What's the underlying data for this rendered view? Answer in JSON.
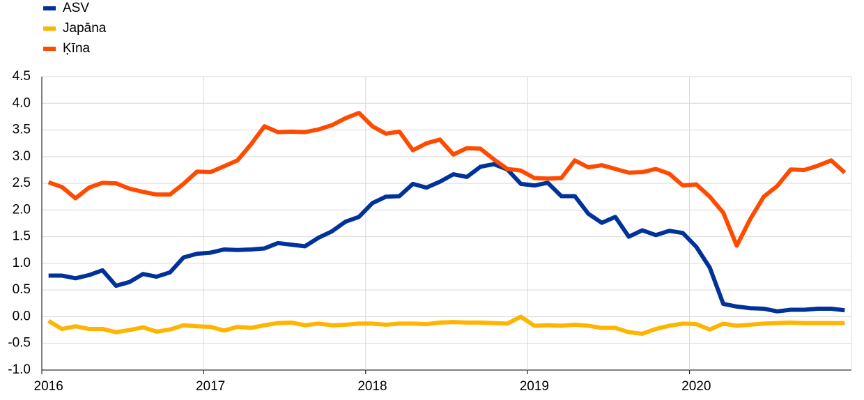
{
  "chart_data": {
    "type": "line",
    "categories": [
      "2016",
      null,
      null,
      null,
      null,
      null,
      null,
      null,
      null,
      null,
      null,
      null,
      "2017",
      null,
      null,
      null,
      null,
      null,
      null,
      null,
      null,
      null,
      null,
      null,
      "2018",
      null,
      null,
      null,
      null,
      null,
      null,
      null,
      null,
      null,
      null,
      null,
      "2019",
      null,
      null,
      null,
      null,
      null,
      null,
      null,
      null,
      null,
      null,
      null,
      "2020",
      null,
      null,
      null,
      null,
      null,
      null,
      null,
      null,
      null,
      null,
      null
    ],
    "series": [
      {
        "name": "ASV",
        "color": "#003299",
        "values": [
          0.77,
          0.77,
          0.72,
          0.78,
          0.87,
          0.58,
          0.65,
          0.8,
          0.75,
          0.83,
          1.11,
          1.18,
          1.2,
          1.26,
          1.25,
          1.26,
          1.28,
          1.38,
          1.35,
          1.32,
          1.48,
          1.6,
          1.78,
          1.87,
          2.13,
          2.25,
          2.26,
          2.49,
          2.42,
          2.53,
          2.67,
          2.62,
          2.81,
          2.86,
          2.76,
          2.49,
          2.46,
          2.51,
          2.26,
          2.26,
          1.93,
          1.76,
          1.87,
          1.5,
          1.62,
          1.53,
          1.61,
          1.57,
          1.31,
          0.92,
          0.24,
          0.19,
          0.16,
          0.15,
          0.1,
          0.13,
          0.13,
          0.15,
          0.15,
          0.12
        ]
      },
      {
        "name": "Japāna",
        "color": "#ffb400",
        "values": [
          -0.08,
          -0.23,
          -0.18,
          -0.23,
          -0.23,
          -0.29,
          -0.25,
          -0.2,
          -0.28,
          -0.24,
          -0.16,
          -0.18,
          -0.19,
          -0.26,
          -0.19,
          -0.21,
          -0.16,
          -0.12,
          -0.11,
          -0.16,
          -0.13,
          -0.16,
          -0.15,
          -0.13,
          -0.13,
          -0.15,
          -0.13,
          -0.13,
          -0.14,
          -0.11,
          -0.1,
          -0.11,
          -0.11,
          -0.12,
          -0.13,
          0.0,
          -0.17,
          -0.16,
          -0.17,
          -0.15,
          -0.17,
          -0.21,
          -0.21,
          -0.29,
          -0.32,
          -0.23,
          -0.17,
          -0.13,
          -0.14,
          -0.24,
          -0.13,
          -0.17,
          -0.15,
          -0.13,
          -0.12,
          -0.11,
          -0.12,
          -0.12,
          -0.12,
          -0.12
        ]
      },
      {
        "name": "Ķīna",
        "color": "#ff4b00",
        "values": [
          2.52,
          2.43,
          2.22,
          2.42,
          2.51,
          2.5,
          2.4,
          2.34,
          2.29,
          2.29,
          2.49,
          2.72,
          2.71,
          2.82,
          2.93,
          3.23,
          3.57,
          3.46,
          3.47,
          3.46,
          3.51,
          3.59,
          3.72,
          3.82,
          3.57,
          3.43,
          3.47,
          3.12,
          3.25,
          3.32,
          3.04,
          3.16,
          3.15,
          2.95,
          2.77,
          2.74,
          2.6,
          2.59,
          2.6,
          2.93,
          2.8,
          2.84,
          2.77,
          2.7,
          2.71,
          2.77,
          2.68,
          2.46,
          2.48,
          2.25,
          1.95,
          1.33,
          1.83,
          2.25,
          2.45,
          2.76,
          2.75,
          2.83,
          2.93,
          2.7
        ]
      }
    ],
    "ylim": [
      -1,
      4.5
    ],
    "yticks": [
      {
        "value": -1,
        "label": "-1.0"
      },
      -0.5,
      {
        "value": 0,
        "label": "0.0"
      },
      0.5,
      {
        "value": 1,
        "label": "1.0"
      },
      1.5,
      {
        "value": 2,
        "label": "2.0"
      },
      2.5,
      {
        "value": 3,
        "label": "3.0"
      },
      3.5,
      {
        "value": 4,
        "label": "4.0"
      },
      4.5
    ],
    "grid": true,
    "legend": "top-left"
  }
}
